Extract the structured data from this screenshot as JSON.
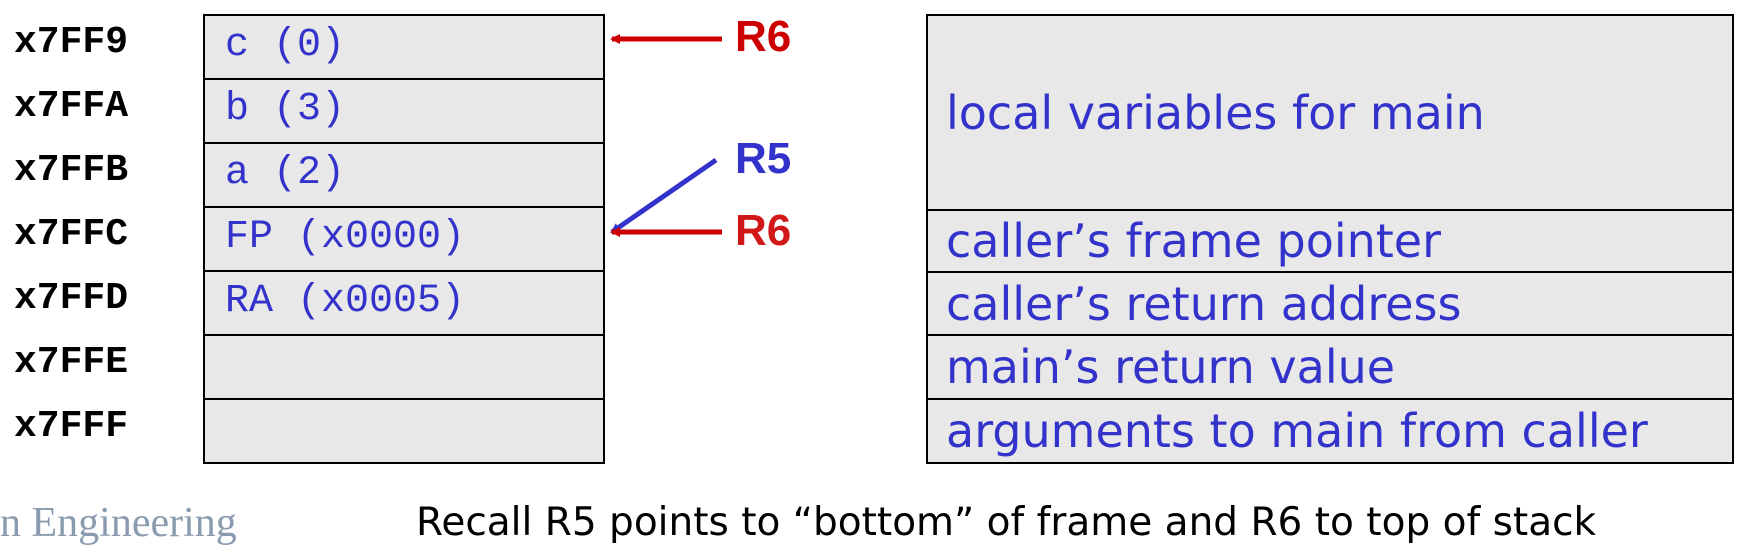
{
  "stack": {
    "slots": [
      {
        "address": "x7FF9",
        "content": "c (0)"
      },
      {
        "address": "x7FFA",
        "content": "b (3)"
      },
      {
        "address": "x7FFB",
        "content": "a (2)"
      },
      {
        "address": "x7FFC",
        "content": "FP (x0000)"
      },
      {
        "address": "x7FFD",
        "content": "RA (x0005)"
      },
      {
        "address": "x7FFE",
        "content": ""
      },
      {
        "address": "x7FFF",
        "content": ""
      }
    ]
  },
  "pointers": {
    "r6_top": {
      "label": "R6",
      "color": "#cc0000"
    },
    "r5": {
      "label": "R5",
      "color": "#3333cc"
    },
    "r6_old": {
      "label": "R6",
      "color": "#cc0000"
    }
  },
  "frame": {
    "regions": [
      {
        "label": "local variables for main"
      },
      {
        "label": "caller’s frame pointer"
      },
      {
        "label": "caller’s return address"
      },
      {
        "label": "main’s return value"
      },
      {
        "label": "arguments to main from caller"
      }
    ]
  },
  "footer": {
    "logo_text": "n Engineering",
    "caption": "Recall R5 points to “bottom” of frame and R6 to top of stack"
  }
}
